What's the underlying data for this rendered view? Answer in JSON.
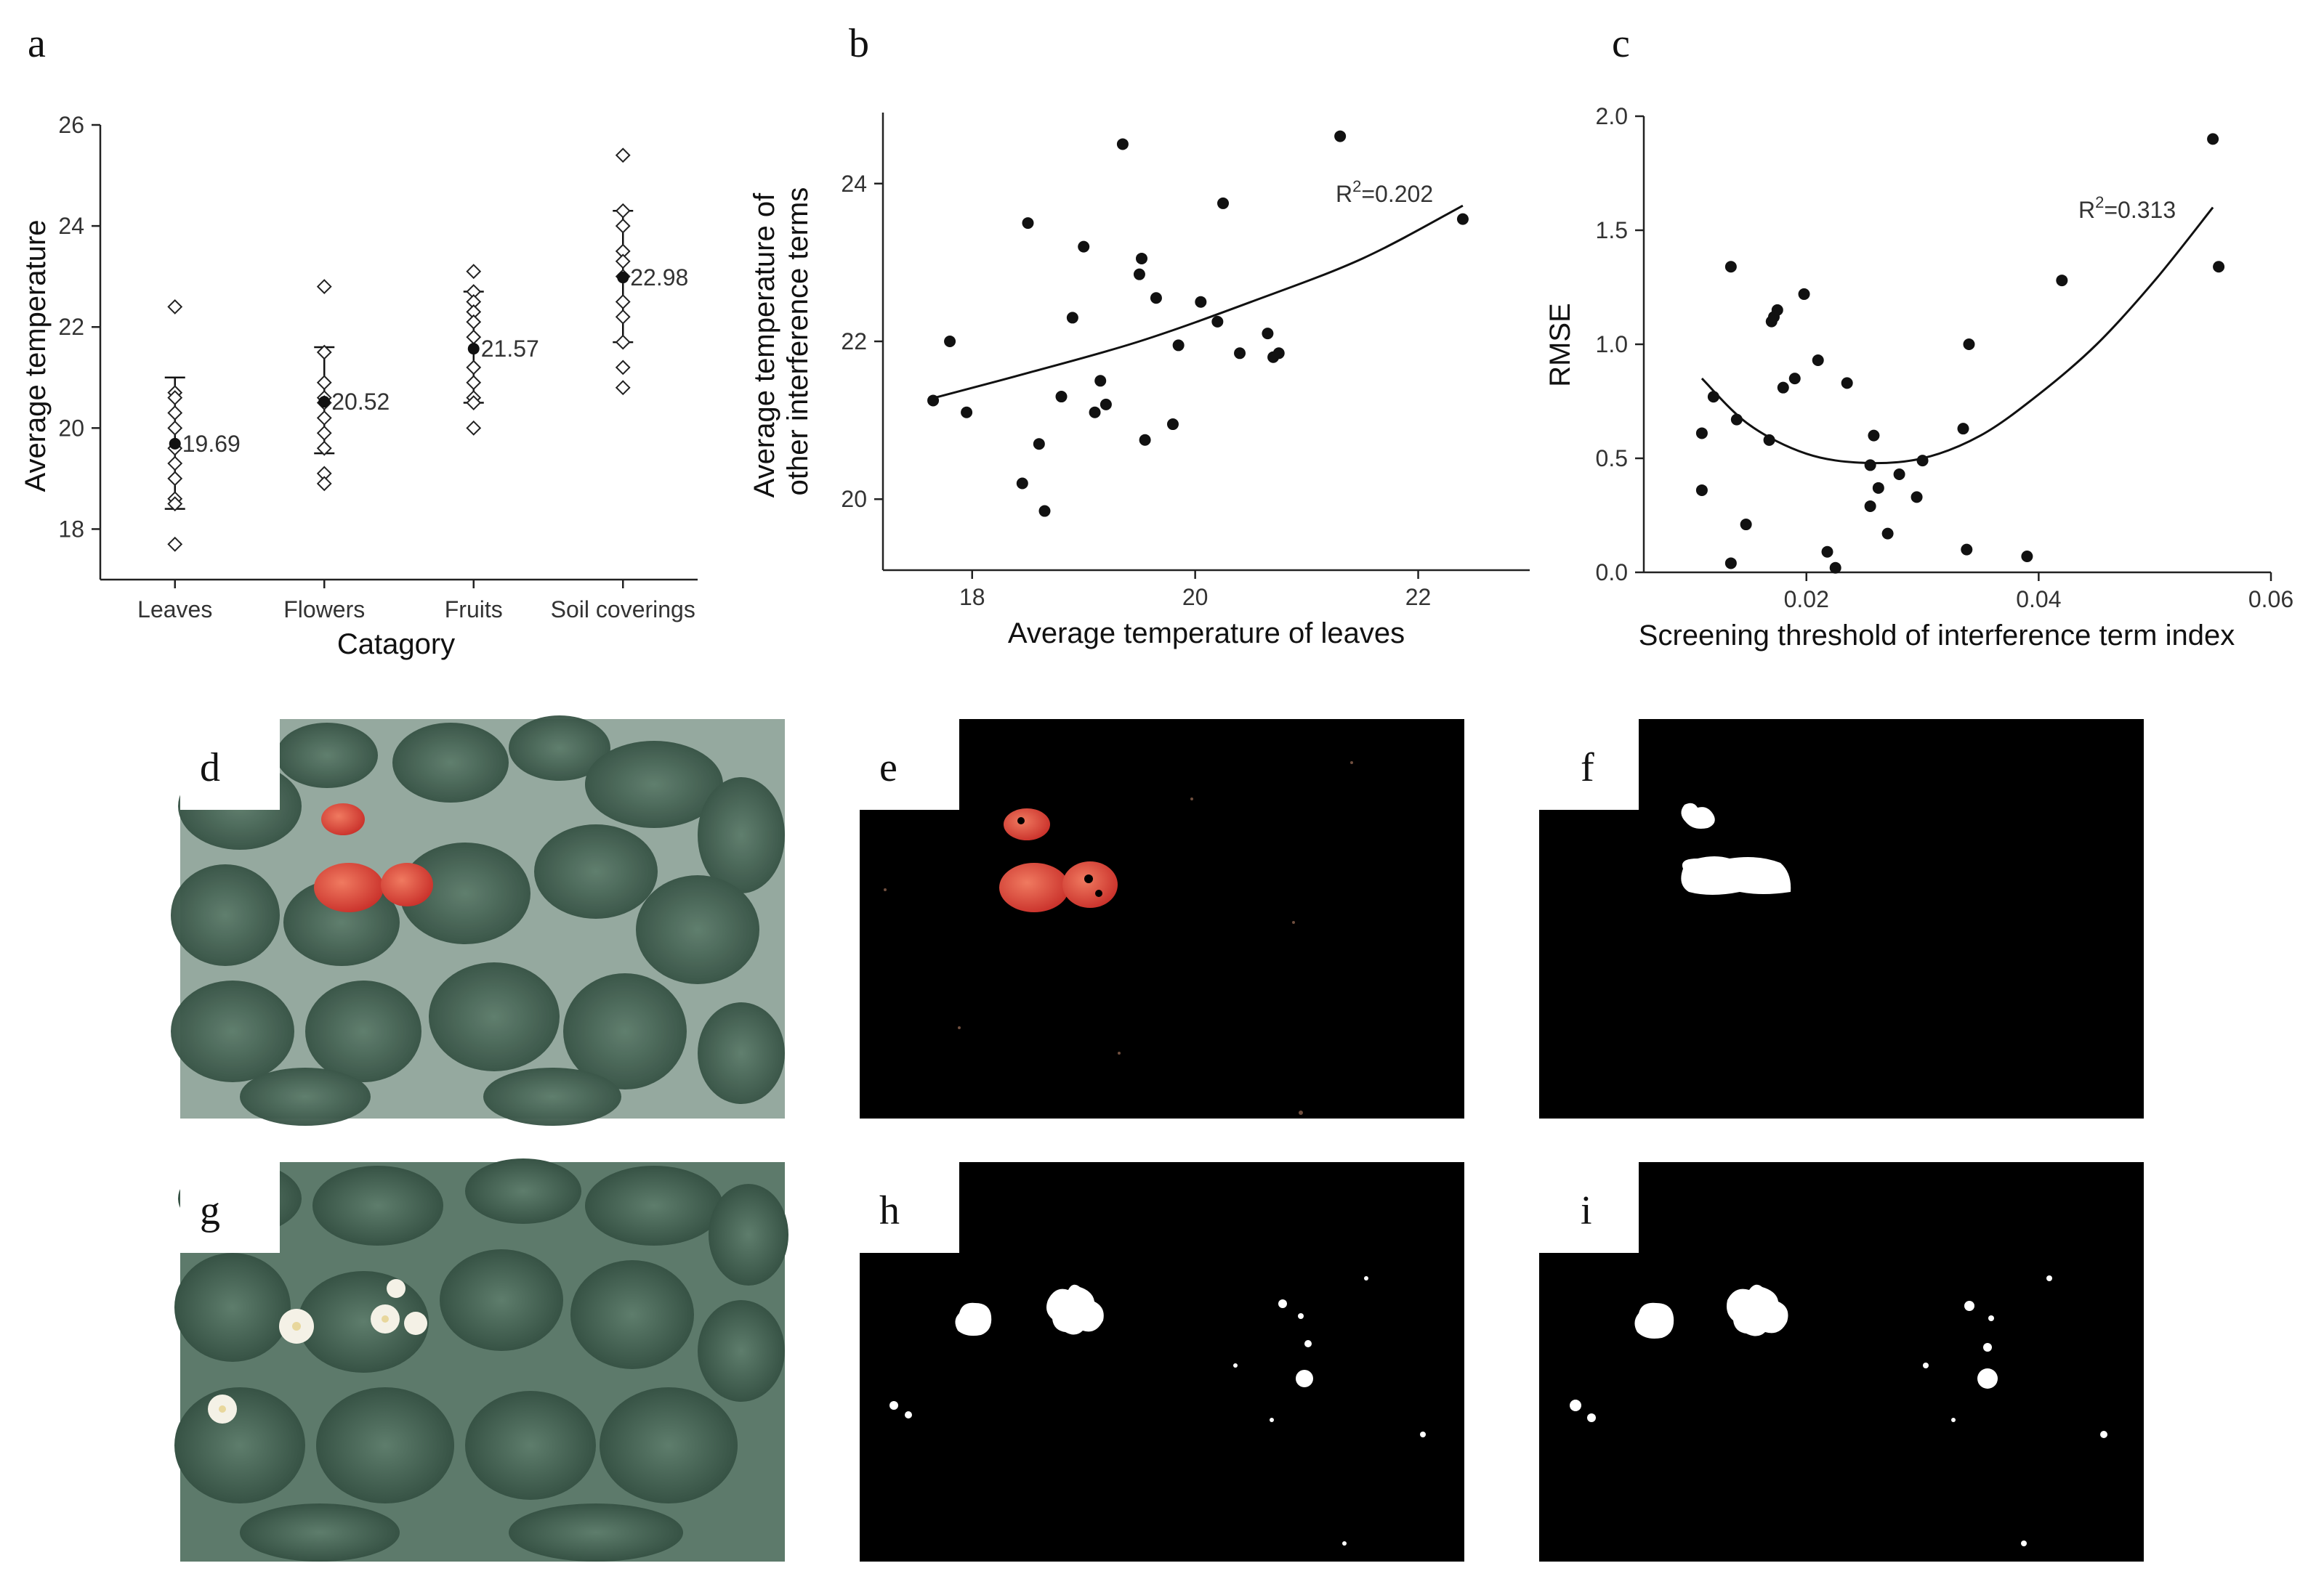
{
  "panels": {
    "a": "a",
    "b": "b",
    "c": "c",
    "d": "d",
    "e": "e",
    "f": "f",
    "g": "g",
    "h": "h",
    "i": "i"
  },
  "chart_data": [
    {
      "panel": "a",
      "type": "scatter",
      "xlabel": "Catagory",
      "ylabel": "Average temperature",
      "categories": [
        "Leaves",
        "Flowers",
        "Fruits",
        "Soil coverings"
      ],
      "ylim": [
        17,
        26
      ],
      "yticks": [
        18,
        20,
        22,
        24,
        26
      ],
      "means": [
        19.69,
        20.52,
        21.57,
        22.98
      ],
      "mean_labels": [
        "19.69",
        "20.52",
        "21.57",
        "22.98"
      ],
      "errorbars": [
        [
          18.4,
          21.0
        ],
        [
          19.5,
          21.6
        ],
        [
          20.5,
          22.7
        ],
        [
          21.7,
          24.3
        ]
      ],
      "points": [
        [
          22.4,
          20.7,
          20.6,
          20.3,
          20.0,
          19.6,
          19.3,
          19.0,
          18.6,
          18.5,
          17.7
        ],
        [
          22.8,
          21.5,
          20.9,
          20.6,
          20.5,
          20.2,
          19.9,
          19.6,
          19.1,
          18.9
        ],
        [
          23.1,
          22.7,
          22.5,
          22.3,
          22.1,
          21.8,
          21.2,
          20.9,
          20.6,
          20.5,
          20.0
        ],
        [
          25.4,
          24.3,
          24.0,
          23.5,
          23.3,
          23.0,
          22.5,
          22.2,
          21.7,
          21.2,
          20.8
        ]
      ]
    },
    {
      "panel": "b",
      "type": "scatter",
      "xlabel": "Average temperature of leaves",
      "ylabel": "Average temperature of\nother interference terms",
      "xlim": [
        17.2,
        23.0
      ],
      "ylim": [
        19.1,
        24.9
      ],
      "xticks": [
        18,
        20,
        22
      ],
      "yticks": [
        20,
        22,
        24
      ],
      "annotation": "R²=0.202",
      "annotation_parts": [
        "R",
        "2",
        "=0.202"
      ],
      "x": [
        17.65,
        17.8,
        17.95,
        18.45,
        18.5,
        18.6,
        18.65,
        18.8,
        18.9,
        19.0,
        19.1,
        19.15,
        19.2,
        19.35,
        19.5,
        19.52,
        19.55,
        19.65,
        19.8,
        19.85,
        20.05,
        20.2,
        20.25,
        20.4,
        20.65,
        20.7,
        20.75,
        21.3,
        22.4
      ],
      "y": [
        21.25,
        22.0,
        21.1,
        20.2,
        23.5,
        20.7,
        19.85,
        21.3,
        22.3,
        23.2,
        21.1,
        21.5,
        21.2,
        24.5,
        22.85,
        23.05,
        20.75,
        22.55,
        20.95,
        21.95,
        22.5,
        22.25,
        23.75,
        21.85,
        22.1,
        21.8,
        21.85,
        24.6,
        23.55
      ],
      "fit": [
        [
          17.65,
          21.28
        ],
        [
          18.5,
          21.6
        ],
        [
          19.5,
          22.0
        ],
        [
          20.5,
          22.5
        ],
        [
          21.5,
          23.05
        ],
        [
          22.4,
          23.72
        ]
      ]
    },
    {
      "panel": "c",
      "type": "scatter",
      "xlabel": "Screening threshold of interference term index",
      "ylabel": "RMSE",
      "xlim": [
        0.006,
        0.06
      ],
      "ylim": [
        0.0,
        2.0
      ],
      "xticks": [
        0.02,
        0.04,
        0.06
      ],
      "xtick_labels": [
        "0.02",
        "0.04",
        "0.06"
      ],
      "yticks": [
        0.0,
        0.5,
        1.0,
        1.5,
        2.0
      ],
      "ytick_labels": [
        "0.0",
        "0.5",
        "1.0",
        "1.5",
        "2.0"
      ],
      "annotation": "R²=0.313",
      "annotation_parts": [
        "R",
        "2",
        "=0.313"
      ],
      "x": [
        0.011,
        0.011,
        0.012,
        0.0135,
        0.0135,
        0.014,
        0.0148,
        0.0168,
        0.017,
        0.0172,
        0.0175,
        0.018,
        0.019,
        0.0198,
        0.021,
        0.0218,
        0.0225,
        0.0235,
        0.0255,
        0.0255,
        0.0258,
        0.0262,
        0.027,
        0.028,
        0.0295,
        0.03,
        0.0335,
        0.0338,
        0.034,
        0.039,
        0.042,
        0.055,
        0.0555
      ],
      "y": [
        0.61,
        0.36,
        0.77,
        1.34,
        0.04,
        0.67,
        0.21,
        0.58,
        1.1,
        1.12,
        1.15,
        0.81,
        0.85,
        1.22,
        0.93,
        0.09,
        0.02,
        0.83,
        0.47,
        0.29,
        0.6,
        0.37,
        0.17,
        0.43,
        0.33,
        0.49,
        0.63,
        0.1,
        1.0,
        0.07,
        1.28,
        1.9,
        1.34
      ],
      "fit": [
        [
          0.011,
          0.85
        ],
        [
          0.015,
          0.65
        ],
        [
          0.02,
          0.52
        ],
        [
          0.025,
          0.48
        ],
        [
          0.03,
          0.5
        ],
        [
          0.035,
          0.6
        ],
        [
          0.04,
          0.78
        ],
        [
          0.045,
          1.0
        ],
        [
          0.05,
          1.28
        ],
        [
          0.055,
          1.6
        ]
      ]
    }
  ]
}
